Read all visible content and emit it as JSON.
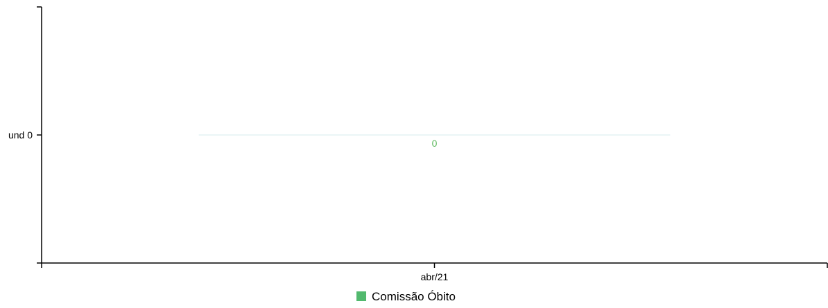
{
  "chart_data": {
    "type": "bar",
    "categories": [
      "abr/21"
    ],
    "series": [
      {
        "name": "Comissão Óbito",
        "values": [
          0
        ],
        "color": "#52b96e",
        "label_color": "#5cb85c"
      }
    ],
    "y_ticks": [
      {
        "value": 0,
        "label": "und 0"
      }
    ],
    "ylim": [
      -1,
      1
    ],
    "legend_position": "bottom-center",
    "bar_baseline_color": "#d6ebee",
    "grid": false
  }
}
